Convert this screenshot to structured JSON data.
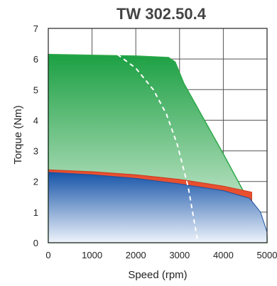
{
  "chart_data": {
    "type": "area",
    "title": "TW 302.50.4",
    "xlabel": "Speed (rpm)",
    "ylabel": "Torque (Nm)",
    "xlim": [
      0,
      5000
    ],
    "ylim": [
      0,
      7
    ],
    "xticks": [
      "0",
      "1000",
      "2000",
      "3000",
      "4000",
      "5000"
    ],
    "yticks": [
      "0",
      "1",
      "2",
      "3",
      "4",
      "5",
      "6",
      "7"
    ],
    "grid": true,
    "legend": "none",
    "series": [
      {
        "color": "#2ea84a",
        "style": "filled-area",
        "x": [
          0,
          2000,
          2750,
          2900,
          3100,
          4000,
          5000
        ],
        "y": [
          6.15,
          6.1,
          6.05,
          5.9,
          5.2,
          2.9,
          0.25
        ]
      },
      {
        "color": "#e85030",
        "style": "filled-area",
        "x": [
          0,
          1000,
          2000,
          3000,
          4000,
          4650
        ],
        "y": [
          2.38,
          2.32,
          2.22,
          2.07,
          1.85,
          1.65
        ]
      },
      {
        "color": "#1f63b4",
        "style": "filled-area",
        "x": [
          0,
          1000,
          2000,
          3000,
          4000,
          4600,
          4850,
          5000
        ],
        "y": [
          2.3,
          2.22,
          2.1,
          1.92,
          1.7,
          1.45,
          1.0,
          0.35
        ]
      },
      {
        "color": "#ffffff",
        "style": "dashed-line",
        "x": [
          1580,
          2000,
          2400,
          2700,
          2950,
          3200,
          3420
        ],
        "y": [
          6.15,
          5.7,
          5.0,
          4.2,
          3.2,
          1.8,
          0.0
        ]
      }
    ]
  }
}
